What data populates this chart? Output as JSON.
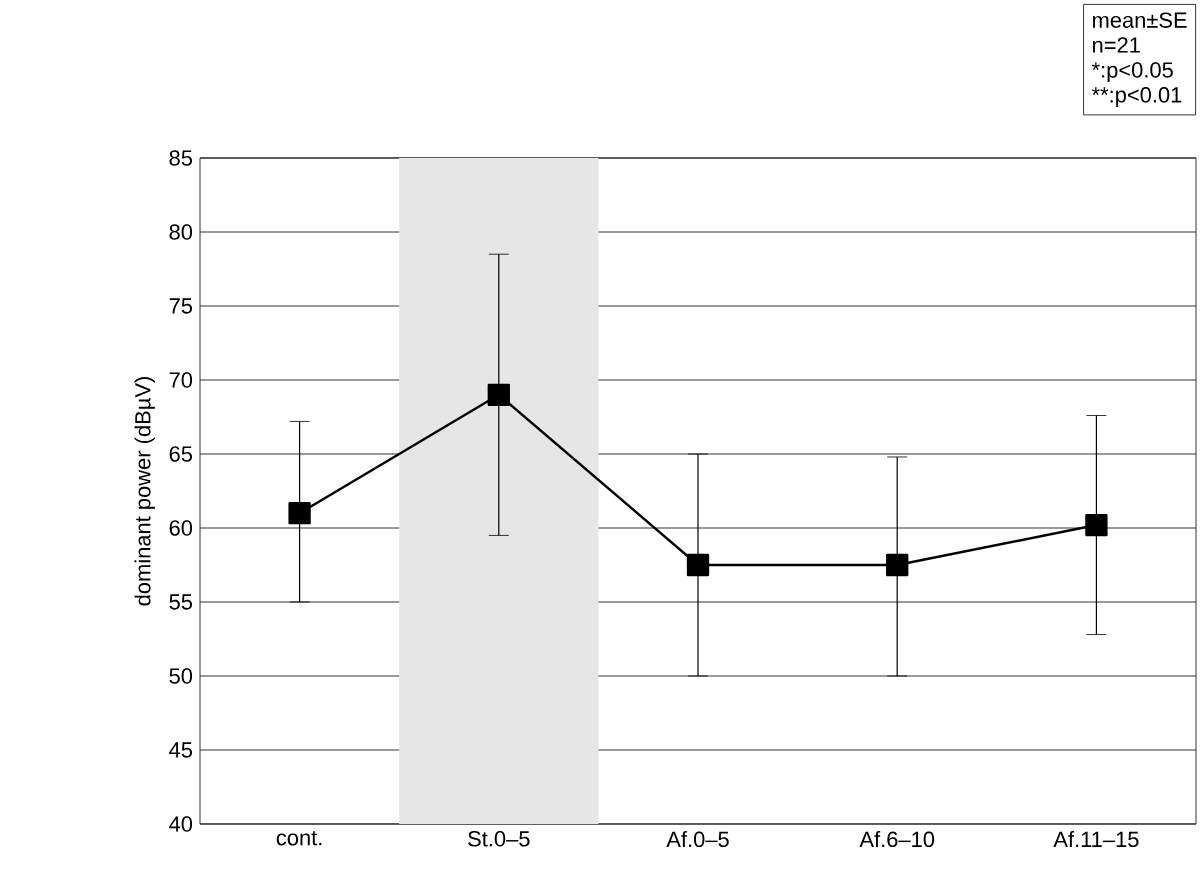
{
  "chart_data": {
    "type": "line",
    "ylabel": "dominant power (dBµV)",
    "categories": [
      "cont.",
      "St.0–5",
      "Af.0–5",
      "Af.6–10",
      "Af.11–15"
    ],
    "values": [
      61,
      69,
      57.5,
      57.5,
      60.2
    ],
    "errors": [
      [
        55,
        67.2
      ],
      [
        59.5,
        78.5
      ],
      [
        50,
        65
      ],
      [
        50,
        64.8
      ],
      [
        52.8,
        67.6
      ]
    ],
    "color": "#000000",
    "marker": "square",
    "line_style": "solid",
    "ylim": [
      40,
      85
    ],
    "yticks": [
      40,
      45,
      50,
      55,
      60,
      65,
      70,
      75,
      80,
      85
    ],
    "grid": "y",
    "bands": [
      {
        "axis": "x",
        "from": "St.0–5",
        "to": "St.0–5",
        "color": "#e6e6e6"
      }
    ],
    "annotations": [
      "mean±SE",
      "n=21",
      "*:p<0.05",
      "**:p<0.01"
    ]
  }
}
